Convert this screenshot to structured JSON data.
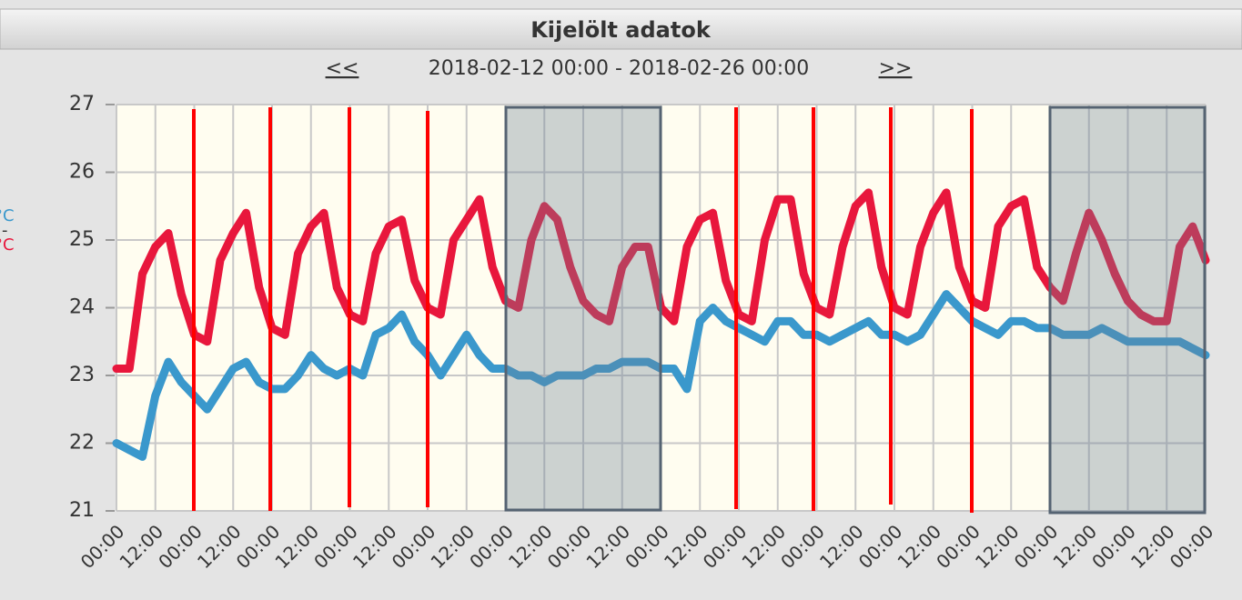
{
  "chart_data": {
    "type": "line",
    "title": "Kijelölt adatok",
    "nav_prev": "<<",
    "subtitle": "2018-02-12 00:00 - 2018-02-26 00:00",
    "nav_next": ">>",
    "legend": [
      "°C",
      "-",
      "°C"
    ],
    "categories": [
      "00:00",
      null,
      null,
      "12:00",
      null,
      null,
      "00:00",
      null,
      null,
      "12:00",
      null,
      null,
      "00:00",
      null,
      null,
      "12:00",
      null,
      null,
      "00:00",
      null,
      null,
      "12:00",
      null,
      null,
      "00:00",
      null,
      null,
      "12:00",
      null,
      null,
      "00:00",
      null,
      null,
      "12:00",
      null,
      null,
      "00:00",
      null,
      null,
      "12:00",
      null,
      null,
      "00:00",
      null,
      null,
      "12:00",
      null,
      null,
      "00:00",
      null,
      null,
      "12:00",
      null,
      null,
      "00:00",
      null,
      null,
      "12:00",
      null,
      null,
      "00:00",
      null,
      null,
      "12:00",
      null,
      null,
      "00:00",
      null,
      null,
      "12:00",
      null,
      null,
      "00:00",
      null,
      null,
      "12:00",
      null,
      null,
      "00:00",
      null,
      null,
      "12:00",
      null,
      null,
      "00:00"
    ],
    "series": [
      {
        "name": "°C",
        "color": "#e8173c",
        "values": [
          23.1,
          23.1,
          24.5,
          24.9,
          25.1,
          24.2,
          23.6,
          23.5,
          24.7,
          25.1,
          25.4,
          24.3,
          23.7,
          23.6,
          24.8,
          25.2,
          25.4,
          24.3,
          23.9,
          23.8,
          24.8,
          25.2,
          25.3,
          24.4,
          24.0,
          23.9,
          25.0,
          25.3,
          25.6,
          24.6,
          24.1,
          24.0,
          25.0,
          25.5,
          25.3,
          24.6,
          24.1,
          23.9,
          23.8,
          24.6,
          24.9,
          24.9,
          24.0,
          23.8,
          24.9,
          25.3,
          25.4,
          24.4,
          23.9,
          23.8,
          25.0,
          25.6,
          25.6,
          24.5,
          24.0,
          23.9,
          24.9,
          25.5,
          25.7,
          24.6,
          24.0,
          23.9,
          24.9,
          25.4,
          25.7,
          24.6,
          24.1,
          24.0,
          25.2,
          25.5,
          25.6,
          24.6,
          24.3,
          24.1,
          24.8,
          25.4,
          25.0,
          24.5,
          24.1,
          23.9,
          23.8,
          23.8,
          24.9,
          25.2,
          24.7
        ]
      },
      {
        "name": "°C",
        "color": "#3a98cc",
        "values": [
          22.0,
          21.9,
          21.8,
          22.7,
          23.2,
          22.9,
          22.7,
          22.5,
          22.8,
          23.1,
          23.2,
          22.9,
          22.8,
          22.8,
          23.0,
          23.3,
          23.1,
          23.0,
          23.1,
          23.0,
          23.6,
          23.7,
          23.9,
          23.5,
          23.3,
          23.0,
          23.3,
          23.6,
          23.3,
          23.1,
          23.1,
          23.0,
          23.0,
          22.9,
          23.0,
          23.0,
          23.0,
          23.1,
          23.1,
          23.2,
          23.2,
          23.2,
          23.1,
          23.1,
          22.8,
          23.8,
          24.0,
          23.8,
          23.7,
          23.6,
          23.5,
          23.8,
          23.8,
          23.6,
          23.6,
          23.5,
          23.6,
          23.7,
          23.8,
          23.6,
          23.6,
          23.5,
          23.6,
          23.9,
          24.2,
          24.0,
          23.8,
          23.7,
          23.6,
          23.8,
          23.8,
          23.7,
          23.7,
          23.6,
          23.6,
          23.6,
          23.7,
          23.6,
          23.5,
          23.5,
          23.5,
          23.5,
          23.5,
          23.4,
          23.3
        ]
      }
    ],
    "ylim": [
      21,
      27
    ],
    "yticks": [
      21,
      22,
      23,
      24,
      25,
      26,
      27
    ],
    "grid": true
  }
}
